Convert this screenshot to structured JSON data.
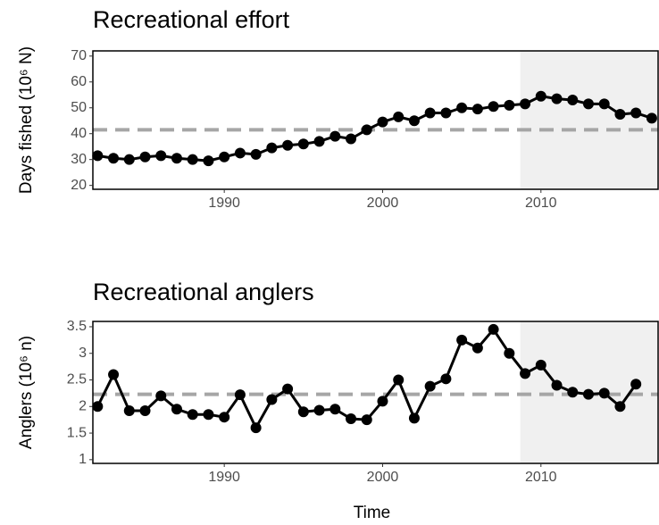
{
  "chart_data": [
    {
      "type": "line",
      "title": "Recreational effort",
      "ylabel": "Days fished (10⁶ N)",
      "x": [
        1982,
        1983,
        1984,
        1985,
        1986,
        1987,
        1988,
        1989,
        1990,
        1991,
        1992,
        1993,
        1994,
        1995,
        1996,
        1997,
        1998,
        1999,
        2000,
        2001,
        2002,
        2003,
        2004,
        2005,
        2006,
        2007,
        2008,
        2009,
        2010,
        2011,
        2012,
        2013,
        2014,
        2015,
        2016,
        2017
      ],
      "values": [
        31.5,
        30.5,
        30,
        31,
        31.5,
        30.5,
        30,
        29.5,
        31,
        32.5,
        32,
        34.5,
        35.5,
        36,
        37,
        39,
        38,
        41.5,
        44.5,
        46.5,
        45,
        48,
        48,
        50,
        49.5,
        50.5,
        51,
        51.5,
        54.5,
        53.5,
        53,
        51.5,
        51.5,
        47.5,
        48,
        46
      ],
      "color": "#000000",
      "reference_line": 41.5,
      "reference_color": "#a6a6a6",
      "shaded_from": 2008.7,
      "shade_color": "#f0f0f0",
      "xlim": [
        1981.7,
        2017.4
      ],
      "xticks": [
        1990,
        2000,
        2010
      ],
      "ylim": [
        18.5,
        72
      ],
      "yticks": [
        20,
        30,
        40,
        50,
        60,
        70
      ]
    },
    {
      "type": "line",
      "title": "Recreational anglers",
      "ylabel": "Anglers (10⁶ n)",
      "xlabel": "Time",
      "x": [
        1982,
        1983,
        1984,
        1985,
        1986,
        1987,
        1988,
        1989,
        1990,
        1991,
        1992,
        1993,
        1994,
        1995,
        1996,
        1997,
        1998,
        1999,
        2000,
        2001,
        2002,
        2003,
        2004,
        2005,
        2006,
        2007,
        2008,
        2009,
        2010,
        2011,
        2012,
        2013,
        2014,
        2015,
        2016
      ],
      "values": [
        2.0,
        2.6,
        1.92,
        1.92,
        2.2,
        1.95,
        1.85,
        1.85,
        1.8,
        2.22,
        1.6,
        2.13,
        2.33,
        1.9,
        1.93,
        1.95,
        1.77,
        1.75,
        2.1,
        2.5,
        1.78,
        2.38,
        2.52,
        3.25,
        3.1,
        3.45,
        3.0,
        2.62,
        2.78,
        2.4,
        2.27,
        2.23,
        2.25,
        2.0,
        2.42
      ],
      "color": "#000000",
      "reference_line": 2.23,
      "reference_color": "#a6a6a6",
      "shaded_from": 2008.7,
      "shade_color": "#f0f0f0",
      "xlim": [
        1981.7,
        2017.4
      ],
      "xticks": [
        1990,
        2000,
        2010
      ],
      "ylim": [
        0.93,
        3.6
      ],
      "yticks": [
        1,
        1.5,
        2,
        2.5,
        3,
        3.5
      ]
    }
  ]
}
